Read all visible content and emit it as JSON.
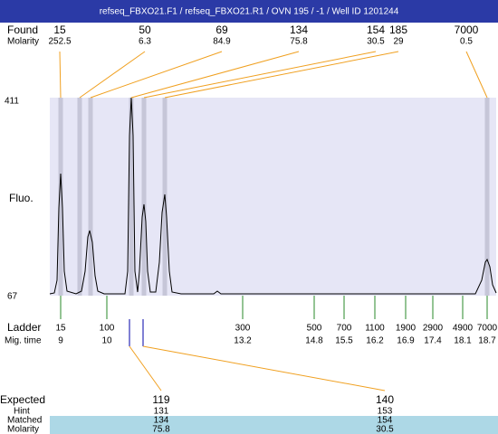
{
  "header": {
    "title": "refseq_FBXO21.F1 / refseq_FBXO21.R1 / OVN 195 / -1 / Well ID 1201244"
  },
  "found": {
    "label": "Found",
    "molarity_label": "Molarity",
    "peaks": [
      {
        "size": 15,
        "molarity": 252.5
      },
      {
        "size": 50,
        "molarity": 6.3
      },
      {
        "size": 69,
        "molarity": 84.9
      },
      {
        "size": 134,
        "molarity": 75.8
      },
      {
        "size": 154,
        "molarity": 30.5
      },
      {
        "size": 185,
        "molarity": 29
      },
      {
        "size": 7000,
        "molarity": 0.5
      }
    ]
  },
  "y_axis": {
    "label": "Fluo.",
    "top": 411,
    "bottom": 67
  },
  "ladder": {
    "label": "Ladder",
    "mig_time_label": "Mig. time",
    "sizes": [
      15,
      100,
      300,
      500,
      700,
      1100,
      1900,
      2900,
      4900,
      7000
    ],
    "mig_times": [
      9,
      10,
      13.2,
      14.8,
      15.5,
      16.2,
      16.9,
      17.4,
      18.1,
      18.7
    ]
  },
  "expected": {
    "label": "Expected",
    "hint_label": "Hint",
    "matched_label": "Matched",
    "molarity_label": "Molarity",
    "rows": [
      {
        "expected": 119,
        "hint": 131,
        "matched": 134,
        "molarity": 75.8
      },
      {
        "expected": 140,
        "hint": 153,
        "matched": 154,
        "molarity": 30.5
      }
    ]
  }
}
